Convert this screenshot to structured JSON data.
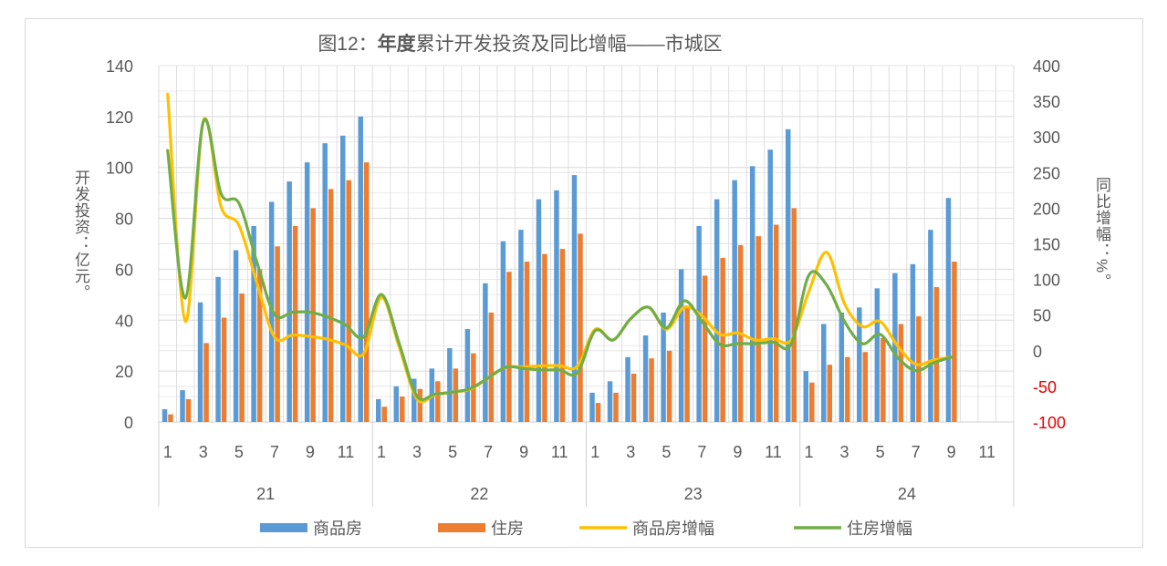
{
  "chart_data": {
    "type": "bar+line",
    "title_prefix": "图12：",
    "title_bold": "年度",
    "title_rest": "累计开发投资及同比增幅——市城区",
    "title": "图12：年度累计开发投资及同比增幅——市城区",
    "ylabel": "开发投资：亿元。",
    "y2label": "同比增幅：%。",
    "ylim": [
      0,
      140
    ],
    "yticks": [
      0,
      20,
      40,
      60,
      80,
      100,
      120,
      140
    ],
    "y2lim": [
      -100,
      400
    ],
    "y2ticks": [
      -100,
      -50,
      0,
      50,
      100,
      150,
      200,
      250,
      300,
      350,
      400
    ],
    "y2_negative_color": "#e00000",
    "years": [
      "21",
      "22",
      "23",
      "24"
    ],
    "month_tick_labels": [
      "1",
      "3",
      "5",
      "7",
      "9",
      "11"
    ],
    "months_per_year": 12,
    "legend_position": "bottom",
    "grid": true,
    "series": [
      {
        "name": "商品房",
        "type": "bar",
        "axis": "left",
        "color": "#5b9bd5",
        "values": [
          5,
          12.5,
          47,
          57,
          67.5,
          77,
          86.5,
          94.5,
          102,
          109.5,
          112.5,
          120,
          9,
          14,
          17,
          21,
          29,
          36.5,
          54.5,
          71,
          75.5,
          87.5,
          91,
          97,
          11.5,
          16,
          25.5,
          34,
          43,
          60,
          77,
          87.5,
          95,
          100.5,
          107,
          115,
          20,
          38.5,
          43,
          45,
          52.5,
          58.5,
          62,
          75.5,
          88,
          null,
          null,
          null
        ]
      },
      {
        "name": "住房",
        "type": "bar",
        "axis": "left",
        "color": "#ed7d31",
        "values": [
          3,
          9,
          31,
          41,
          50.5,
          60,
          69,
          77,
          84,
          91.5,
          95,
          102,
          6,
          10,
          13,
          16,
          21,
          27,
          43,
          59,
          63,
          66,
          68,
          74,
          7.5,
          11.5,
          19,
          25,
          28,
          45,
          57.5,
          64.5,
          69.5,
          73,
          77.5,
          84,
          15.5,
          22.5,
          25.5,
          27.5,
          33,
          38.5,
          41.5,
          53,
          63,
          null,
          null,
          null
        ]
      },
      {
        "name": "商品房增幅",
        "type": "line",
        "axis": "right",
        "color": "#ffc000",
        "values": [
          360,
          41,
          322,
          202,
          176,
          96,
          19,
          22,
          20,
          16,
          8,
          -4,
          75,
          5,
          -68,
          -62,
          -58,
          -54,
          -38,
          -23,
          -23,
          -21,
          -21,
          -22,
          30,
          15,
          45,
          61,
          30,
          61,
          49,
          23,
          25,
          15,
          17,
          15,
          83,
          138,
          66,
          34,
          41,
          6,
          -19,
          -13,
          -9,
          null,
          null,
          null
        ]
      },
      {
        "name": "住房增幅",
        "type": "line",
        "axis": "right",
        "color": "#70ad47",
        "values": [
          281,
          74,
          321,
          220,
          207,
          125,
          51,
          54,
          54,
          47,
          36,
          19,
          79,
          10,
          -64,
          -61,
          -58,
          -53,
          -38,
          -23,
          -25,
          -27,
          -27,
          -31,
          28,
          15,
          45,
          61,
          32,
          70,
          41,
          9,
          10,
          10,
          12,
          9,
          106,
          92,
          41,
          10,
          23,
          -10,
          -28,
          -17,
          -9,
          null,
          null,
          null
        ]
      }
    ]
  }
}
